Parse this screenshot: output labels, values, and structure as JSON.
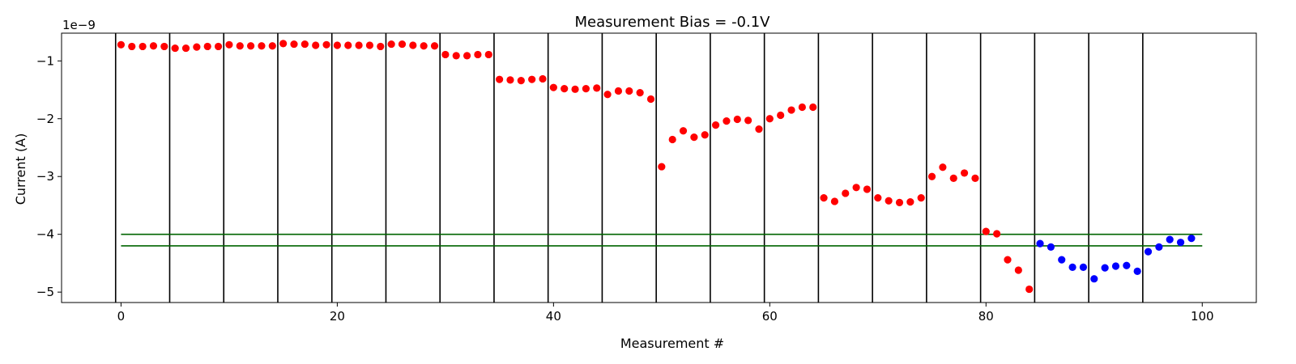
{
  "chart_data": {
    "type": "scatter",
    "title": "Measurement Bias = -0.1V",
    "xlabel": "Measurement #",
    "ylabel": "Current (A)",
    "y_offset_text": "1e−9",
    "xlim": [
      -5.5,
      105
    ],
    "ylim": [
      -5.18e-09,
      -5.2e-10
    ],
    "x_ticks": [
      0,
      20,
      40,
      60,
      80,
      100
    ],
    "y_ticks": [
      -5e-09,
      -4e-09,
      -3e-09,
      -2e-09,
      -1e-09
    ],
    "y_tick_labels": [
      "−5",
      "−4",
      "−3",
      "−2",
      "−1"
    ],
    "vertical_lines_x": [
      -0.5,
      4.5,
      9.5,
      14.5,
      19.5,
      24.5,
      29.5,
      34.5,
      39.5,
      44.5,
      49.5,
      54.5,
      59.5,
      64.5,
      69.5,
      74.5,
      79.5,
      84.5,
      89.5,
      94.5
    ],
    "horizontal_lines": [
      {
        "y": -4e-09,
        "x_range": [
          0,
          100
        ],
        "color": "#006400"
      },
      {
        "y": -4.2e-09,
        "x_range": [
          0,
          100
        ],
        "color": "#006400"
      }
    ],
    "series": [
      {
        "color": "#ff0000",
        "x": [
          0,
          1,
          2,
          3,
          4,
          5,
          6,
          7,
          8,
          9,
          10,
          11,
          12,
          13,
          14,
          15,
          16,
          17,
          18,
          19,
          20,
          21,
          22,
          23,
          24,
          25,
          26,
          27,
          28,
          29,
          30,
          31,
          32,
          33,
          34,
          35,
          36,
          37,
          38,
          39,
          40,
          41,
          42,
          43,
          44,
          45,
          46,
          47,
          48,
          49,
          50,
          51,
          52,
          53,
          54,
          55,
          56,
          57,
          58,
          59,
          60,
          61,
          62,
          63,
          64,
          65,
          66,
          67,
          68,
          69,
          70,
          71,
          72,
          73,
          74,
          75,
          76,
          77,
          78,
          79,
          80,
          81,
          82,
          83,
          84
        ],
        "y": [
          -7.2e-10,
          -7.5e-10,
          -7.5e-10,
          -7.4e-10,
          -7.5e-10,
          -7.8e-10,
          -7.8e-10,
          -7.6e-10,
          -7.5e-10,
          -7.5e-10,
          -7.2e-10,
          -7.4e-10,
          -7.4e-10,
          -7.4e-10,
          -7.4e-10,
          -7e-10,
          -7.1e-10,
          -7.1e-10,
          -7.3e-10,
          -7.2e-10,
          -7.3e-10,
          -7.3e-10,
          -7.3e-10,
          -7.3e-10,
          -7.5e-10,
          -7.1e-10,
          -7.1e-10,
          -7.3e-10,
          -7.4e-10,
          -7.4e-10,
          -8.9e-10,
          -9.1e-10,
          -9.1e-10,
          -8.9e-10,
          -8.9e-10,
          -1.32e-09,
          -1.33e-09,
          -1.34e-09,
          -1.32e-09,
          -1.31e-09,
          -1.46e-09,
          -1.48e-09,
          -1.49e-09,
          -1.48e-09,
          -1.47e-09,
          -1.58e-09,
          -1.52e-09,
          -1.52e-09,
          -1.55e-09,
          -1.66e-09,
          -2.83e-09,
          -2.36e-09,
          -2.21e-09,
          -2.32e-09,
          -2.28e-09,
          -2.11e-09,
          -2.04e-09,
          -2.01e-09,
          -2.03e-09,
          -2.18e-09,
          -2e-09,
          -1.94e-09,
          -1.85e-09,
          -1.8e-09,
          -1.8e-09,
          -3.37e-09,
          -3.43e-09,
          -3.29e-09,
          -3.19e-09,
          -3.22e-09,
          -3.37e-09,
          -3.42e-09,
          -3.45e-09,
          -3.44e-09,
          -3.37e-09,
          -3e-09,
          -2.84e-09,
          -3.03e-09,
          -2.94e-09,
          -3.03e-09,
          -3.95e-09,
          -3.99e-09,
          -4.44e-09,
          -4.62e-09,
          -4.95e-09
        ]
      },
      {
        "color": "#0000ff",
        "x": [
          85,
          86,
          87,
          88,
          89,
          90,
          91,
          92,
          93,
          94,
          95,
          96,
          97,
          98,
          99
        ],
        "y": [
          -4.16e-09,
          -4.22e-09,
          -4.44e-09,
          -4.57e-09,
          -4.57e-09,
          -4.77e-09,
          -4.58e-09,
          -4.55e-09,
          -4.54e-09,
          -4.64e-09,
          -4.3e-09,
          -4.22e-09,
          -4.09e-09,
          -4.14e-09,
          -4.07e-09
        ]
      }
    ]
  }
}
